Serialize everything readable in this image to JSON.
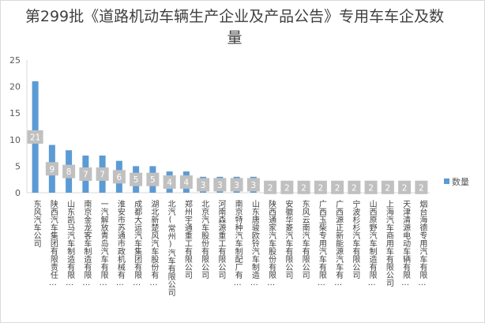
{
  "chart_data": {
    "type": "bar",
    "title": "第299批《道路机动车辆生产企业及产品公告》专用车车企及数量",
    "categories": [
      "东风汽车公司",
      "陕西汽车集团有限责任…",
      "山东凯马汽车制造有限…",
      "南京金龙客车制造有限…",
      "一汽解放青岛汽车有限…",
      "淮安市苏通市政机械有…",
      "成都大运汽车集团有限…",
      "湖北新楚风汽车股份有…",
      "北汽(常州)汽车有限公司",
      "郑州宇通重工有限公司",
      "北京汽车股份有限公司",
      "河南森源重工有限公司",
      "南京特种汽车制配厂有…",
      "山东唐骏欧铃汽车制造…",
      "陕西通家汽车股份有限…",
      "安徽华菱汽车有限公司",
      "东风云南汽车有限公司",
      "广西玉柴专用汽车有限…",
      "广西源正新能源汽车有…",
      "宁波杉杉汽车有限公司",
      "山西原野汽车制造有限…",
      "上海汽车商用车有限公司",
      "天津清源电动车辆有限…",
      "烟台海德专用汽车有限…"
    ],
    "series": [
      {
        "name": "数量",
        "color": "#5b9bd5",
        "values": [
          21,
          9,
          8,
          7,
          7,
          6,
          5,
          5,
          4,
          4,
          3,
          3,
          3,
          3,
          2,
          2,
          2,
          2,
          2,
          2,
          2,
          2,
          2,
          2
        ]
      }
    ],
    "ylim": [
      0,
      25
    ],
    "yticks": [
      0,
      5,
      10,
      15,
      20,
      25
    ],
    "grid": false,
    "legend": "right",
    "data_labels": true,
    "data_label_bg": "#c0c0c0"
  }
}
